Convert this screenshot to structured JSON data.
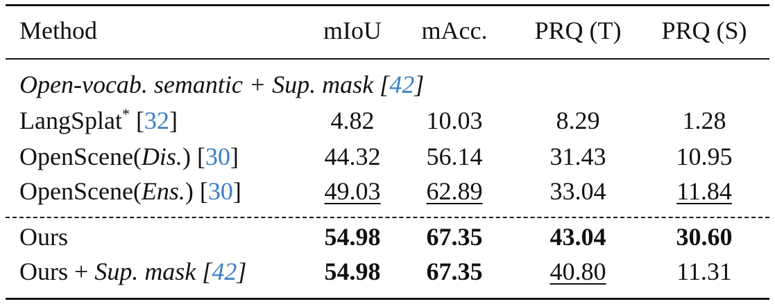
{
  "table": {
    "headers": [
      "Method",
      "mIoU",
      "mAcc.",
      "PRQ (T)",
      "PRQ (S)"
    ],
    "section_label": {
      "text": "Open-vocab. semantic + Sup. mask [",
      "cite": "42",
      "close": "]"
    },
    "rows": [
      {
        "method": "LangSplat",
        "method_sup": "*",
        "method_cite": "32",
        "values": [
          "4.82",
          "10.03",
          "8.29",
          "1.28"
        ]
      },
      {
        "method": "OpenScene(",
        "method_ital": "Dis.",
        "method_close": ")",
        "method_cite": "30",
        "values": [
          "44.32",
          "56.14",
          "31.43",
          "10.95"
        ]
      },
      {
        "method": "OpenScene(",
        "method_ital": "Ens.",
        "method_close": ")",
        "method_cite": "30",
        "values": [
          "49.03",
          "62.89",
          "33.04",
          "11.84"
        ],
        "underlined": [
          0,
          1,
          3
        ]
      },
      {
        "method": "Ours",
        "values": [
          "54.98",
          "67.35",
          "43.04",
          "30.60"
        ],
        "bold": [
          0,
          1,
          2,
          3
        ]
      },
      {
        "method": "Ours + ",
        "method_ital": "Sup. mask [",
        "method_cite": "42",
        "method_ital_close": "]",
        "values": [
          "54.98",
          "67.35",
          "40.80",
          "11.31"
        ],
        "bold": [
          0,
          1
        ],
        "underlined": [
          2
        ]
      }
    ]
  }
}
